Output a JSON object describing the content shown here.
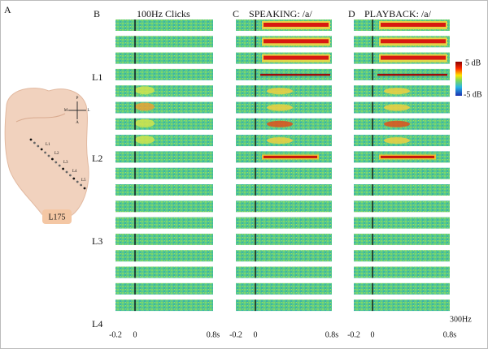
{
  "panels": [
    {
      "letter": "A"
    },
    {
      "letter": "B",
      "title": "100Hz Clicks"
    },
    {
      "letter": "C",
      "title": "SPEAKING: /a/"
    },
    {
      "letter": "D",
      "title": "PLAYBACK: /a/"
    }
  ],
  "brain": {
    "label": "L175",
    "compass": [
      "P",
      "M",
      "L",
      "A"
    ],
    "electrodes": [
      "L1",
      "L2",
      "L3",
      "L4",
      "L5"
    ]
  },
  "row_labels": [
    "L1",
    "L2",
    "L3",
    "L4"
  ],
  "x_ticks": [
    "-0.2",
    "0",
    "0.8s"
  ],
  "colorbar": {
    "max": "5 dB",
    "min": "-5 dB"
  },
  "freq_label": "300Hz"
}
